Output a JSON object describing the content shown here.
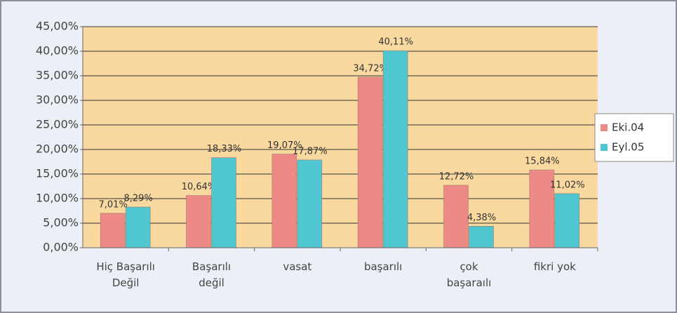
{
  "chart_data": {
    "type": "bar",
    "categories": [
      "Hiç Başarılı\nDeğil",
      "Başarılı\ndeğil",
      "vasat",
      "başarılı",
      "çok\nbaşaraılı",
      "fikri yok"
    ],
    "series": [
      {
        "name": "Eki.04",
        "color": "#ee8a86",
        "values": [
          7.01,
          10.64,
          19.07,
          34.72,
          12.72,
          15.84
        ],
        "value_labels": [
          "7,01%",
          "10,64%",
          "19,07%",
          "34,72%",
          "12,72%",
          "15,84%"
        ]
      },
      {
        "name": "Eyl.05",
        "color": "#4fc6d0",
        "values": [
          8.29,
          18.33,
          17.87,
          40.11,
          4.38,
          11.02
        ],
        "value_labels": [
          "8,29%",
          "18,33%",
          "17,87%",
          "40,11%",
          "4,38%",
          "11,02%"
        ]
      }
    ],
    "ylim": [
      0,
      45
    ],
    "yticks": [
      {
        "value": 0,
        "label": "0,00%"
      },
      {
        "value": 5,
        "label": "5,00%"
      },
      {
        "value": 10,
        "label": "10,00%"
      },
      {
        "value": 15,
        "label": "15,00%"
      },
      {
        "value": 20,
        "label": "20,00%"
      },
      {
        "value": 25,
        "label": "25,00%"
      },
      {
        "value": 30,
        "label": "30,00%"
      },
      {
        "value": 35,
        "label": "35,00%"
      },
      {
        "value": 40,
        "label": "40,00%"
      },
      {
        "value": 45,
        "label": "45,00%"
      }
    ],
    "grid": true,
    "legend": "right"
  }
}
